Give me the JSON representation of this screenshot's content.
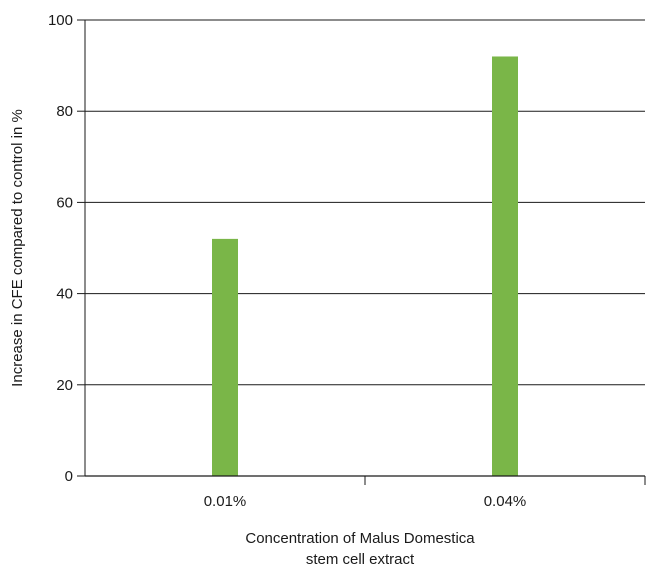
{
  "chart_data": {
    "type": "bar",
    "title": "",
    "categories": [
      "0.01%",
      "0.04%"
    ],
    "values": [
      52,
      92
    ],
    "xlabel": [
      "Concentration of Malus Domestica",
      "stem cell extract"
    ],
    "ylabel": "Increase in CFE compared to control in %",
    "ylim": [
      0,
      100
    ],
    "yticks": [
      0,
      20,
      40,
      60,
      80,
      100
    ],
    "ytick_labels": [
      "0",
      "20",
      "40",
      "60",
      "80",
      "100"
    ],
    "grid": true,
    "legend": "none",
    "bar_color": "#7ab648",
    "grid_color": "#1a1a1a",
    "axis_color": "#1a1a1a"
  }
}
